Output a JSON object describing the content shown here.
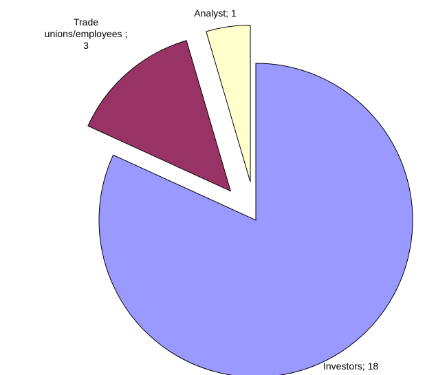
{
  "chart_data": {
    "type": "pie",
    "values": [
      18,
      3,
      1
    ],
    "value_labels": [
      "Investors; 18",
      "Trade unions/employees ; 3",
      "Analyst; 1"
    ],
    "colors": [
      "#9999ff",
      "#993366",
      "#ffffcc"
    ],
    "explode": [
      false,
      true,
      true
    ]
  }
}
